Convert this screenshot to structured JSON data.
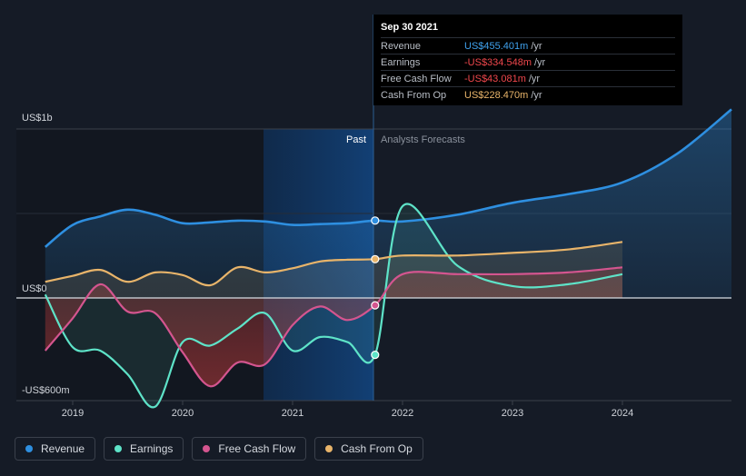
{
  "chart_data": {
    "type": "line",
    "title": "",
    "y_axis_labels": {
      "top": "US$1b",
      "zero": "US$0",
      "bottom": "-US$600m"
    },
    "ylim": [
      -700,
      1200
    ],
    "x_ticks": [
      "2019",
      "2020",
      "2021",
      "2022",
      "2023",
      "2024"
    ],
    "section_labels": {
      "past": "Past",
      "forecast": "Analysts Forecasts"
    },
    "tooltip": {
      "date": "Sep 30 2021",
      "rows": [
        {
          "label": "Revenue",
          "value": "US$455.401m",
          "unit": "/yr",
          "color": "#3fa1ed"
        },
        {
          "label": "Earnings",
          "value": "-US$334.548m",
          "unit": "/yr",
          "color": "#f0474c"
        },
        {
          "label": "Free Cash Flow",
          "value": "-US$43.081m",
          "unit": "/yr",
          "color": "#f0474c"
        },
        {
          "label": "Cash From Op",
          "value": "US$228.470m",
          "unit": "/yr",
          "color": "#e8b46a"
        }
      ]
    },
    "series": [
      {
        "name": "Revenue",
        "color": "#2e8fe0",
        "points": [
          [
            2018.75,
            300
          ],
          [
            2019.0,
            430
          ],
          [
            2019.25,
            480
          ],
          [
            2019.5,
            520
          ],
          [
            2019.75,
            490
          ],
          [
            2020.0,
            440
          ],
          [
            2020.25,
            445
          ],
          [
            2020.5,
            455
          ],
          [
            2020.75,
            450
          ],
          [
            2021.0,
            430
          ],
          [
            2021.25,
            435
          ],
          [
            2021.5,
            440
          ],
          [
            2021.75,
            455.4
          ],
          [
            2022.0,
            450
          ],
          [
            2022.5,
            490
          ],
          [
            2023.0,
            560
          ],
          [
            2023.5,
            610
          ],
          [
            2024.0,
            680
          ],
          [
            2024.5,
            850
          ],
          [
            2025.0,
            1110
          ]
        ]
      },
      {
        "name": "Earnings",
        "color": "#5ee3c8",
        "points": [
          [
            2018.75,
            20
          ],
          [
            2019.0,
            -290
          ],
          [
            2019.25,
            -310
          ],
          [
            2019.5,
            -450
          ],
          [
            2019.75,
            -640
          ],
          [
            2020.0,
            -260
          ],
          [
            2020.25,
            -280
          ],
          [
            2020.5,
            -180
          ],
          [
            2020.75,
            -90
          ],
          [
            2021.0,
            -310
          ],
          [
            2021.25,
            -230
          ],
          [
            2021.5,
            -260
          ],
          [
            2021.75,
            -334.5
          ],
          [
            2022.0,
            540
          ],
          [
            2022.5,
            190
          ],
          [
            2023.0,
            70
          ],
          [
            2023.5,
            80
          ],
          [
            2024.0,
            140
          ]
        ]
      },
      {
        "name": "Free Cash Flow",
        "color": "#d4558f",
        "points": [
          [
            2018.75,
            -310
          ],
          [
            2019.0,
            -120
          ],
          [
            2019.25,
            80
          ],
          [
            2019.5,
            -80
          ],
          [
            2019.75,
            -90
          ],
          [
            2020.0,
            -320
          ],
          [
            2020.25,
            -520
          ],
          [
            2020.5,
            -380
          ],
          [
            2020.75,
            -390
          ],
          [
            2021.0,
            -160
          ],
          [
            2021.25,
            -50
          ],
          [
            2021.5,
            -130
          ],
          [
            2021.75,
            -43.1
          ],
          [
            2022.0,
            140
          ],
          [
            2022.5,
            140
          ],
          [
            2023.0,
            140
          ],
          [
            2023.5,
            150
          ],
          [
            2024.0,
            180
          ]
        ]
      },
      {
        "name": "Cash From Op",
        "color": "#e8b46a",
        "points": [
          [
            2018.75,
            95
          ],
          [
            2019.0,
            130
          ],
          [
            2019.25,
            165
          ],
          [
            2019.5,
            95
          ],
          [
            2019.75,
            150
          ],
          [
            2020.0,
            135
          ],
          [
            2020.25,
            75
          ],
          [
            2020.5,
            180
          ],
          [
            2020.75,
            150
          ],
          [
            2021.0,
            175
          ],
          [
            2021.25,
            215
          ],
          [
            2021.5,
            225
          ],
          [
            2021.75,
            228.5
          ],
          [
            2022.0,
            250
          ],
          [
            2022.5,
            250
          ],
          [
            2023.0,
            265
          ],
          [
            2023.5,
            285
          ],
          [
            2024.0,
            330
          ]
        ]
      }
    ],
    "legend": [
      {
        "name": "Revenue",
        "color": "#2e8fe0"
      },
      {
        "name": "Earnings",
        "color": "#5ee3c8"
      },
      {
        "name": "Free Cash Flow",
        "color": "#d4558f"
      },
      {
        "name": "Cash From Op",
        "color": "#e8b46a"
      }
    ]
  }
}
